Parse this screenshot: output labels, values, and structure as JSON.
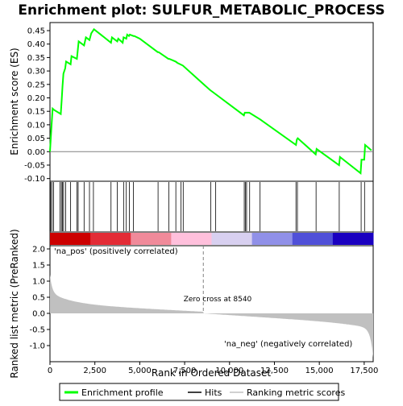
{
  "chart_data": {
    "type": "line",
    "title": "Enrichment plot: SULFUR_METABOLIC_PROCESS",
    "xlabel": "Rank in Ordered Dataset",
    "ylabel_top": "Enrichment score (ES)",
    "ylabel_bottom": "Ranked list metric (PreRanked)",
    "x_range": [
      0,
      18000
    ],
    "x_ticks": [
      0,
      2500,
      5000,
      7500,
      10000,
      12500,
      15000,
      17500
    ],
    "x_tick_labels": [
      "0",
      "2,500",
      "5,000",
      "7,500",
      "10,000",
      "12,500",
      "15,000",
      "17,500"
    ],
    "es_range": [
      -0.11,
      0.48
    ],
    "es_ticks": [
      -0.1,
      -0.05,
      0.0,
      0.05,
      0.1,
      0.15,
      0.2,
      0.25,
      0.3,
      0.35,
      0.4,
      0.45
    ],
    "es_tick_labels": [
      "-0.10",
      "-0.05",
      "0.00",
      "0.05",
      "0.10",
      "0.15",
      "0.20",
      "0.25",
      "0.30",
      "0.35",
      "0.40",
      "0.45"
    ],
    "metric_range": [
      -1.5,
      2.1
    ],
    "metric_ticks": [
      -1.0,
      -0.5,
      0.0,
      0.5,
      1.0,
      1.5,
      2.0
    ],
    "metric_tick_labels": [
      "-1.0",
      "-0.5",
      "0.0",
      "0.5",
      "1.0",
      "1.5",
      "2.0"
    ],
    "enrichment_profile": {
      "x": [
        0,
        70,
        150,
        230,
        600,
        650,
        700,
        750,
        850,
        900,
        1150,
        1200,
        1500,
        1600,
        1900,
        2000,
        2200,
        2300,
        2450,
        3400,
        3450,
        3750,
        3800,
        4050,
        4100,
        4250,
        4300,
        4400,
        4450,
        4650,
        4700,
        5000,
        6000,
        6050,
        6600,
        6650,
        7000,
        7100,
        7400,
        8900,
        9200,
        10800,
        10850,
        10900,
        11100,
        11700,
        13700,
        13750,
        13800,
        14800,
        14850,
        16100,
        16150,
        17300,
        17350,
        17500,
        17550,
        17900
      ],
      "y": [
        0.0,
        0.08,
        0.16,
        0.155,
        0.14,
        0.19,
        0.245,
        0.29,
        0.31,
        0.335,
        0.325,
        0.355,
        0.345,
        0.41,
        0.395,
        0.425,
        0.415,
        0.44,
        0.455,
        0.405,
        0.425,
        0.41,
        0.42,
        0.405,
        0.425,
        0.42,
        0.435,
        0.43,
        0.435,
        0.43,
        0.43,
        0.42,
        0.37,
        0.37,
        0.345,
        0.345,
        0.335,
        0.33,
        0.32,
        0.23,
        0.215,
        0.135,
        0.145,
        0.145,
        0.145,
        0.12,
        0.025,
        0.045,
        0.05,
        -0.01,
        0.01,
        -0.05,
        -0.02,
        -0.08,
        -0.03,
        -0.03,
        0.025,
        0.005
      ]
    },
    "hits": [
      40,
      120,
      200,
      560,
      640,
      700,
      760,
      870,
      1150,
      1500,
      1570,
      1900,
      2200,
      2420,
      3400,
      3750,
      4100,
      4250,
      4420,
      4650,
      6020,
      6620,
      7010,
      7300,
      7420,
      8950,
      9230,
      10820,
      10880,
      10950,
      11120,
      11700,
      13700,
      13780,
      14820,
      16110,
      17330,
      17520
    ],
    "zero_cross_label": "Zero cross at 8540",
    "zero_cross_x": 8540,
    "pos_label": "'na_pos' (positively correlated)",
    "neg_label": "'na_neg' (negatively correlated)",
    "legend": [
      "Enrichment profile",
      "Hits",
      "Ranking metric scores"
    ],
    "colors": {
      "profile": "#00ff00",
      "hit": "#000000",
      "metric_fill": "#c0c0c0",
      "zero_line": "#808080",
      "pos_text": "#cc0000",
      "neg_text": "#0000cc",
      "panel_border": "#000000"
    },
    "heat_colors": [
      "#cc0000",
      "#e32c36",
      "#f08a9a",
      "#ffc0dc",
      "#d8d0f0",
      "#9090e8",
      "#5050d8",
      "#1a00c0"
    ]
  }
}
